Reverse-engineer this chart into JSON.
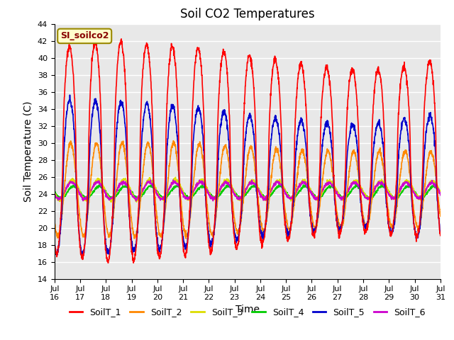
{
  "title": "Soil CO2 Temperatures",
  "xlabel": "Time",
  "ylabel": "Soil Temperature (C)",
  "ylim": [
    14,
    44
  ],
  "xtick_labels": [
    "Jul\n16",
    "Jul\n17",
    "Jul\n18",
    "Jul\n19",
    "Jul\n20",
    "Jul\n21",
    "Jul\n22",
    "Jul\n23",
    "Jul\n24",
    "Jul\n25",
    "Jul\n26",
    "Jul\n27",
    "Jul\n28",
    "Jul\n29",
    "Jul\n30",
    "Jul\n31"
  ],
  "ytick_values": [
    14,
    16,
    18,
    20,
    22,
    24,
    26,
    28,
    30,
    32,
    34,
    36,
    38,
    40,
    42,
    44
  ],
  "series": {
    "SoilT_1": {
      "color": "#ff0000",
      "lw": 1.2
    },
    "SoilT_2": {
      "color": "#ff8800",
      "lw": 1.2
    },
    "SoilT_3": {
      "color": "#dddd00",
      "lw": 1.2
    },
    "SoilT_4": {
      "color": "#00cc00",
      "lw": 1.2
    },
    "SoilT_5": {
      "color": "#0000cc",
      "lw": 1.2
    },
    "SoilT_6": {
      "color": "#cc00cc",
      "lw": 1.2
    }
  },
  "legend_box_text": "SI_soilco2",
  "legend_box_bg": "#ffffcc",
  "legend_box_edge": "#998800",
  "bg_color": "#e8e8e8",
  "grid_color": "#ffffff",
  "title_fontsize": 12,
  "axis_label_fontsize": 10,
  "tick_fontsize": 8
}
